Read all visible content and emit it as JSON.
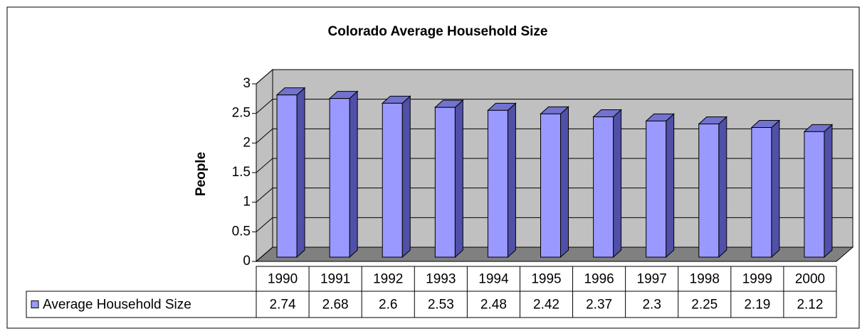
{
  "chart_data": {
    "type": "bar3d",
    "title": "Colorado Average Household Size",
    "y_label": "People",
    "categories": [
      "1990",
      "1991",
      "1992",
      "1993",
      "1994",
      "1995",
      "1996",
      "1997",
      "1998",
      "1999",
      "2000"
    ],
    "series": [
      {
        "name": "Average Household Size",
        "color": "#9999ff",
        "values": [
          2.74,
          2.68,
          2.6,
          2.53,
          2.48,
          2.42,
          2.37,
          2.3,
          2.25,
          2.19,
          2.12
        ]
      }
    ],
    "ylim": [
      0,
      3
    ],
    "yticks": [
      0,
      0.5,
      1,
      1.5,
      2,
      2.5,
      3
    ],
    "grid": true,
    "data_table": true
  }
}
